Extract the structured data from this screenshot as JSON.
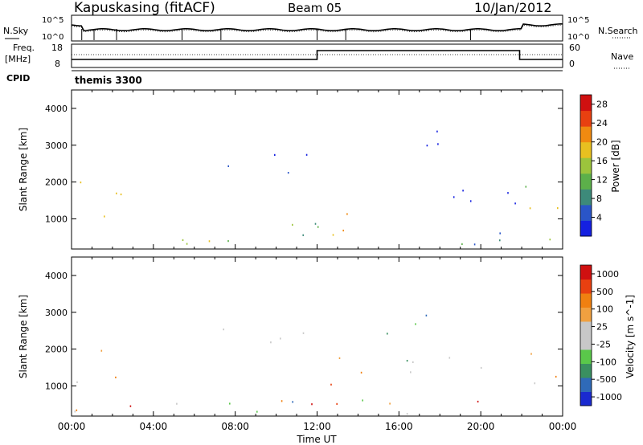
{
  "header": {
    "station": "Kapuskasing (fitACF)",
    "beam": "Beam 05",
    "date": "10/Jan/2012"
  },
  "status_panels": {
    "nsky_label": "N.Sky",
    "nsky_ticks": [
      "10^5",
      "10^0"
    ],
    "nsearch_label": "N.Search",
    "nsearch_ticks": [
      "10^5",
      "10^0"
    ],
    "freq_label": "Freq.",
    "freq_unit": "[MHz]",
    "freq_ticks": [
      "18",
      "8"
    ],
    "nave_label": "Nave",
    "nave_ticks": [
      "60",
      "0"
    ],
    "cpid_label": "CPID",
    "cpid_value": "themis 3300"
  },
  "chart_data": [
    {
      "type": "heatmap",
      "panel": "power",
      "ylabel": "Slant Range [km]",
      "xlabel": "",
      "x_ticks": [
        "00:00",
        "04:00",
        "08:00",
        "12:00",
        "16:00",
        "20:00",
        "00:00"
      ],
      "xlim_hours": [
        0,
        24
      ],
      "ylim_km": [
        180,
        4500
      ],
      "y_ticks": [
        1000,
        2000,
        3000,
        4000
      ],
      "colorbar": {
        "label": "Power [dB]",
        "ticks": [
          4,
          8,
          12,
          16,
          20,
          24,
          28
        ],
        "range": [
          0,
          30
        ],
        "colors": [
          "#1420e0",
          "#2a55c8",
          "#3d8a7a",
          "#5cb04a",
          "#9cc43c",
          "#e8c020",
          "#f08a10",
          "#e84010",
          "#d01010"
        ]
      },
      "regions": [
        {
          "t0": 0.0,
          "t1": 2.4,
          "r0": 600,
          "r1": 2200,
          "level": 0.55
        },
        {
          "t0": 1.0,
          "t1": 2.4,
          "r0": 900,
          "r1": 2000,
          "level": 0.65
        },
        {
          "t0": 0.0,
          "t1": 24.0,
          "r0": 250,
          "r1": 700,
          "level": 0.35
        },
        {
          "t0": 6.0,
          "t1": 8.0,
          "r0": 2300,
          "r1": 2800,
          "level": 0.1
        },
        {
          "t0": 8.5,
          "t1": 12.0,
          "r0": 2200,
          "r1": 3000,
          "level": 0.08
        },
        {
          "t0": 10.0,
          "t1": 12.0,
          "r0": 500,
          "r1": 1400,
          "level": 0.5
        },
        {
          "t0": 12.0,
          "t1": 15.0,
          "r0": 400,
          "r1": 1800,
          "level": 0.55
        },
        {
          "t0": 14.5,
          "t1": 22.0,
          "r0": 1300,
          "r1": 2000,
          "level": 0.1
        },
        {
          "t0": 15.3,
          "t1": 18.5,
          "r0": 2300,
          "r1": 3400,
          "level": 0.1
        },
        {
          "t0": 22.0,
          "t1": 24.0,
          "r0": 400,
          "r1": 2000,
          "level": 0.55
        }
      ]
    },
    {
      "type": "heatmap",
      "panel": "velocity",
      "ylabel": "Slant Range [km]",
      "xlabel": "Time UT",
      "x_ticks": [
        "00:00",
        "04:00",
        "08:00",
        "12:00",
        "16:00",
        "20:00",
        "00:00"
      ],
      "xlim_hours": [
        0,
        24
      ],
      "ylim_km": [
        180,
        4500
      ],
      "y_ticks": [
        1000,
        2000,
        3000,
        4000
      ],
      "colorbar": {
        "label": "Velocity [m s^-1]",
        "ticks": [
          "1000",
          "500",
          "100",
          "25",
          "-25",
          "-100",
          "-500",
          "-1000"
        ],
        "colors": [
          "#1a2ad0",
          "#2f6ab8",
          "#3a9060",
          "#5ac84a",
          "#c8c8c8",
          "#c8c8c8",
          "#f0a040",
          "#f08010",
          "#e84010",
          "#d01010"
        ]
      },
      "regions": [
        {
          "t0": 0.0,
          "t1": 1.0,
          "r0": 400,
          "r1": 2000,
          "level": "gray"
        },
        {
          "t0": 1.0,
          "t1": 2.4,
          "r0": 600,
          "r1": 2200,
          "level": "orange"
        },
        {
          "t0": 0.0,
          "t1": 24.0,
          "r0": 200,
          "r1": 700,
          "level": "mixed"
        },
        {
          "t0": 6.0,
          "t1": 8.0,
          "r0": 2300,
          "r1": 2800,
          "level": "gray"
        },
        {
          "t0": 8.5,
          "t1": 12.0,
          "r0": 2200,
          "r1": 3000,
          "level": "gray"
        },
        {
          "t0": 10.0,
          "t1": 12.0,
          "r0": 500,
          "r1": 1400,
          "level": "mixed"
        },
        {
          "t0": 12.0,
          "t1": 15.0,
          "r0": 400,
          "r1": 1800,
          "level": "orange"
        },
        {
          "t0": 14.5,
          "t1": 22.0,
          "r0": 1300,
          "r1": 2000,
          "level": "gray"
        },
        {
          "t0": 15.3,
          "t1": 18.5,
          "r0": 2300,
          "r1": 3400,
          "level": "blue"
        },
        {
          "t0": 22.0,
          "t1": 23.4,
          "r0": 400,
          "r1": 2000,
          "level": "gray"
        },
        {
          "t0": 23.4,
          "t1": 24.0,
          "r0": 300,
          "r1": 1400,
          "level": "orange"
        }
      ]
    }
  ]
}
